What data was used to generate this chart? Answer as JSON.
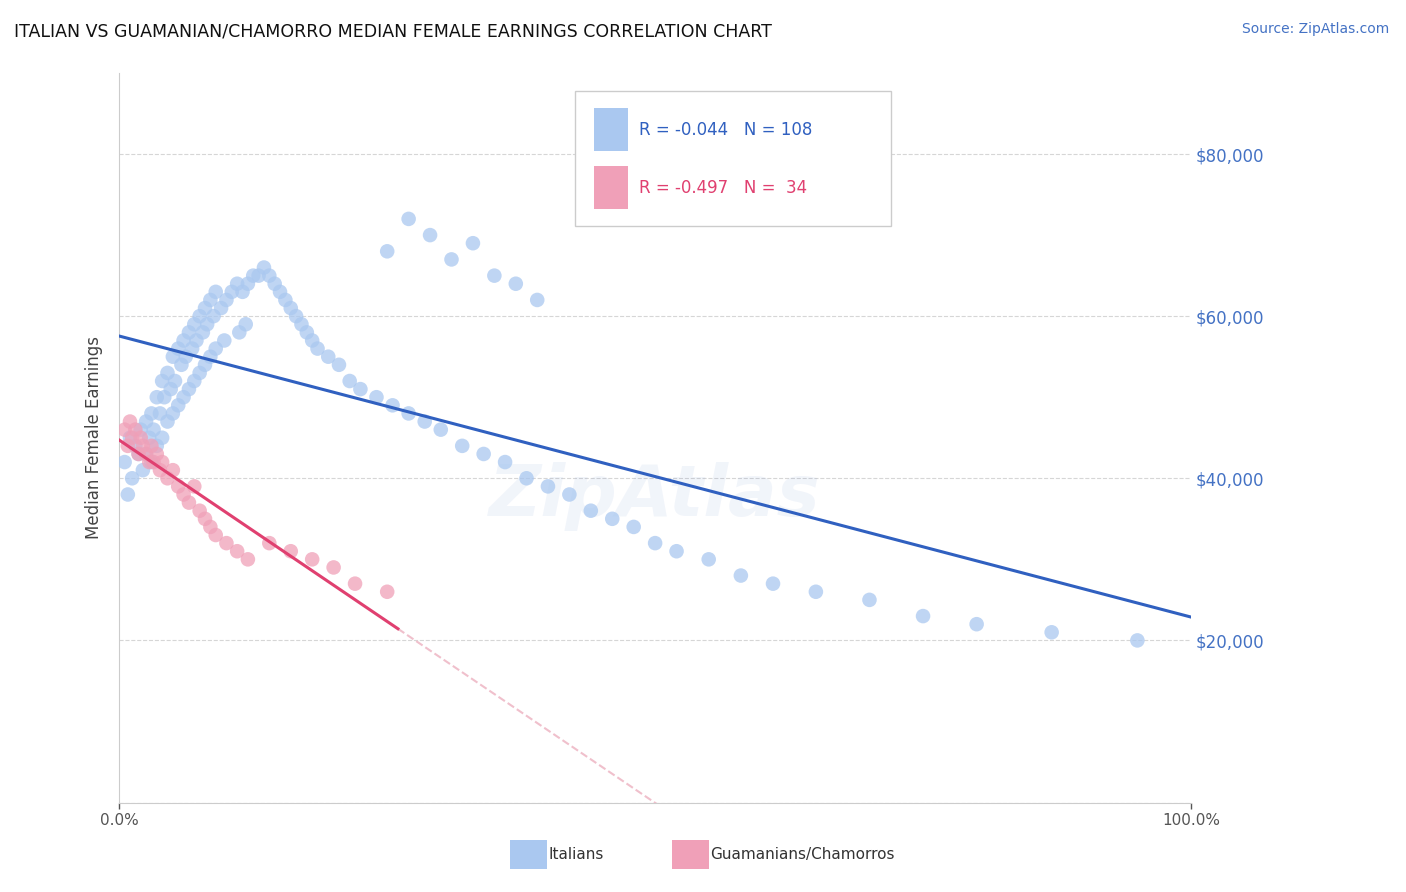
{
  "title": "ITALIAN VS GUAMANIAN/CHAMORRO MEDIAN FEMALE EARNINGS CORRELATION CHART",
  "source": "Source: ZipAtlas.com",
  "ylabel": "Median Female Earnings",
  "xlim": [
    0,
    1.0
  ],
  "ylim": [
    0,
    90000
  ],
  "yticks": [
    0,
    20000,
    40000,
    60000,
    80000
  ],
  "background_color": "#ffffff",
  "grid_color": "#cccccc",
  "italian_color": "#aac8f0",
  "italian_line_color": "#3060c0",
  "guam_color": "#f0a0b8",
  "guam_line_color": "#e04070",
  "guam_dash_color": "#f0c0cc",
  "legend_text_color_blue": "#3060c0",
  "legend_text_color_pink": "#e04070",
  "italian_x": [
    0.005,
    0.008,
    0.01,
    0.012,
    0.015,
    0.018,
    0.02,
    0.022,
    0.025,
    0.025,
    0.028,
    0.03,
    0.03,
    0.032,
    0.035,
    0.035,
    0.038,
    0.04,
    0.04,
    0.042,
    0.045,
    0.045,
    0.048,
    0.05,
    0.05,
    0.052,
    0.055,
    0.055,
    0.058,
    0.06,
    0.06,
    0.062,
    0.065,
    0.065,
    0.068,
    0.07,
    0.07,
    0.072,
    0.075,
    0.075,
    0.078,
    0.08,
    0.08,
    0.082,
    0.085,
    0.085,
    0.088,
    0.09,
    0.09,
    0.095,
    0.098,
    0.1,
    0.105,
    0.11,
    0.112,
    0.115,
    0.118,
    0.12,
    0.125,
    0.13,
    0.135,
    0.14,
    0.145,
    0.15,
    0.155,
    0.16,
    0.165,
    0.17,
    0.175,
    0.18,
    0.185,
    0.195,
    0.205,
    0.215,
    0.225,
    0.24,
    0.255,
    0.27,
    0.285,
    0.3,
    0.32,
    0.34,
    0.36,
    0.38,
    0.4,
    0.42,
    0.44,
    0.46,
    0.48,
    0.5,
    0.52,
    0.55,
    0.58,
    0.61,
    0.65,
    0.7,
    0.75,
    0.8,
    0.87,
    0.95,
    0.25,
    0.27,
    0.29,
    0.31,
    0.33,
    0.35,
    0.37,
    0.39
  ],
  "italian_y": [
    42000,
    38000,
    45000,
    40000,
    44000,
    43000,
    46000,
    41000,
    47000,
    43000,
    45000,
    48000,
    42000,
    46000,
    50000,
    44000,
    48000,
    52000,
    45000,
    50000,
    53000,
    47000,
    51000,
    55000,
    48000,
    52000,
    56000,
    49000,
    54000,
    57000,
    50000,
    55000,
    58000,
    51000,
    56000,
    59000,
    52000,
    57000,
    60000,
    53000,
    58000,
    61000,
    54000,
    59000,
    62000,
    55000,
    60000,
    63000,
    56000,
    61000,
    57000,
    62000,
    63000,
    64000,
    58000,
    63000,
    59000,
    64000,
    65000,
    65000,
    66000,
    65000,
    64000,
    63000,
    62000,
    61000,
    60000,
    59000,
    58000,
    57000,
    56000,
    55000,
    54000,
    52000,
    51000,
    50000,
    49000,
    48000,
    47000,
    46000,
    44000,
    43000,
    42000,
    40000,
    39000,
    38000,
    36000,
    35000,
    34000,
    32000,
    31000,
    30000,
    28000,
    27000,
    26000,
    25000,
    23000,
    22000,
    21000,
    20000,
    68000,
    72000,
    70000,
    67000,
    69000,
    65000,
    64000,
    62000
  ],
  "guam_x": [
    0.005,
    0.008,
    0.01,
    0.012,
    0.015,
    0.018,
    0.02,
    0.022,
    0.025,
    0.028,
    0.03,
    0.032,
    0.035,
    0.038,
    0.04,
    0.045,
    0.05,
    0.055,
    0.06,
    0.065,
    0.07,
    0.075,
    0.08,
    0.085,
    0.09,
    0.1,
    0.11,
    0.12,
    0.14,
    0.16,
    0.18,
    0.2,
    0.22,
    0.25
  ],
  "guam_y": [
    46000,
    44000,
    47000,
    45000,
    46000,
    43000,
    45000,
    44000,
    43000,
    42000,
    44000,
    42000,
    43000,
    41000,
    42000,
    40000,
    41000,
    39000,
    38000,
    37000,
    39000,
    36000,
    35000,
    34000,
    33000,
    32000,
    31000,
    30000,
    32000,
    31000,
    30000,
    29000,
    27000,
    26000
  ]
}
